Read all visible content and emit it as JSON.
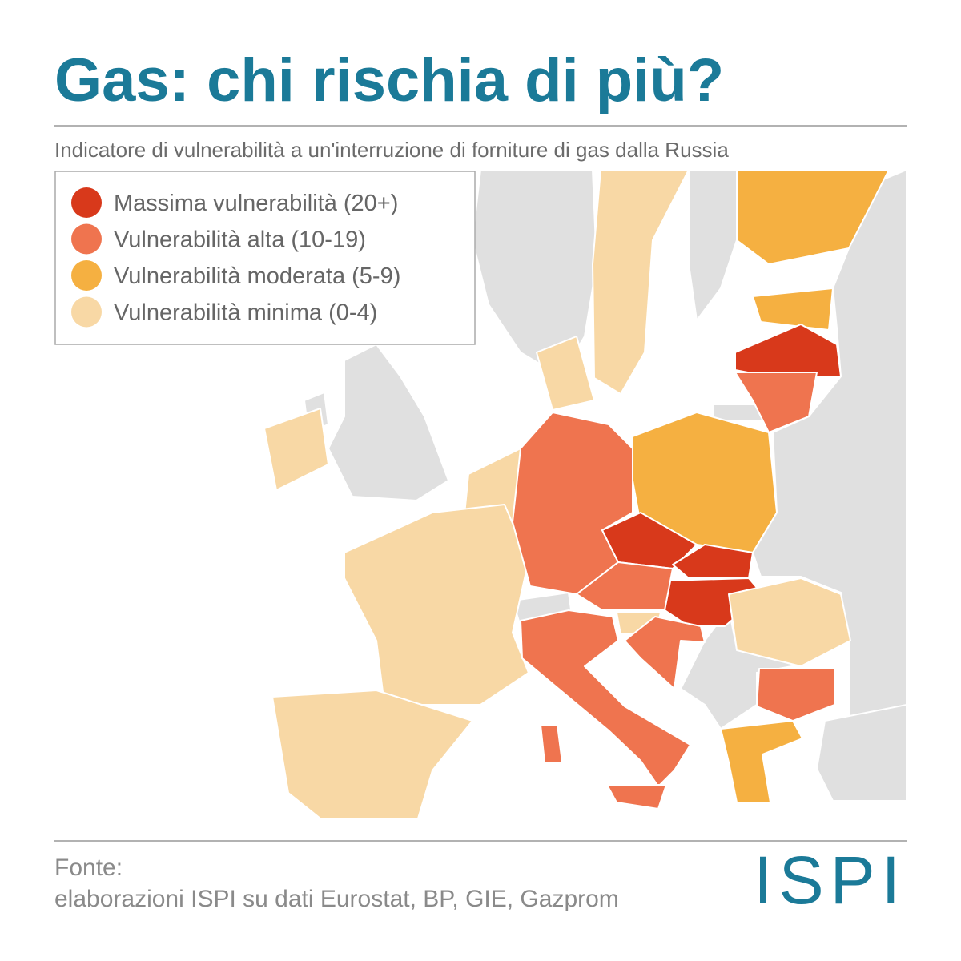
{
  "header": {
    "title": "Gas: chi rischia di più?",
    "subtitle": "Indicatore di vulnerabilità a un'interruzione di forniture di gas dalla Russia"
  },
  "legend": {
    "items": [
      {
        "label": "Massima vulnerabilità (20+)",
        "color": "#d8391b"
      },
      {
        "label": "Vulnerabilità alta (10-19)",
        "color": "#ef744f"
      },
      {
        "label": "Vulnerabilità moderata (5-9)",
        "color": "#f5b041"
      },
      {
        "label": "Vulnerabilità minima (0-4)",
        "color": "#f8d8a5"
      }
    ]
  },
  "footer": {
    "source_label": "Fonte:",
    "source": "elaborazioni ISPI su dati Eurostat, BP, GIE, Gazprom",
    "logo": "ISPI"
  }
}
